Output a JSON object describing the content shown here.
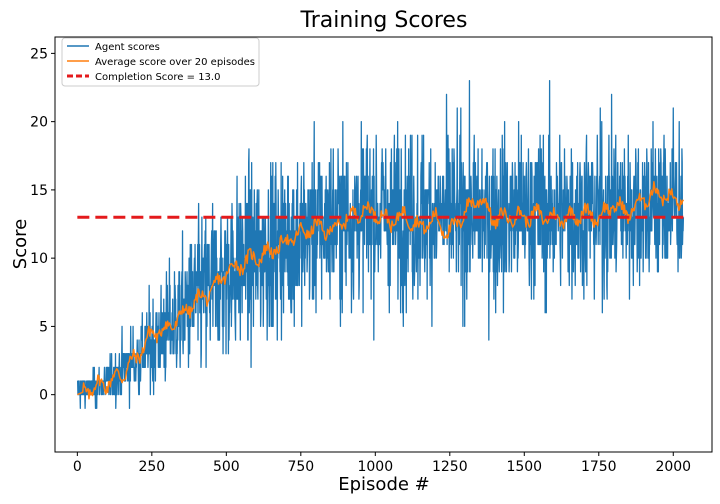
{
  "chart_data": {
    "type": "line",
    "title": "Training Scores",
    "xlabel": "Episode #",
    "ylabel": "Score",
    "xlim": [
      -75,
      2130
    ],
    "ylim": [
      -4.2,
      26.2
    ],
    "xticks": [
      0,
      250,
      500,
      750,
      1000,
      1250,
      1500,
      1750,
      2000
    ],
    "yticks": [
      0,
      5,
      10,
      15,
      20,
      25
    ],
    "grid": false,
    "legend_position": "top-left",
    "colors": {
      "agent": "#1f77b4",
      "average": "#ff7f0e",
      "completion": "#e41a1c"
    },
    "episodes": 2035,
    "series": [
      {
        "name": "Agent scores",
        "style": "line",
        "trend": [
          [
            0,
            0.2
          ],
          [
            100,
            0.9
          ],
          [
            200,
            2.6
          ],
          [
            300,
            4.8
          ],
          [
            400,
            7.0
          ],
          [
            500,
            8.8
          ],
          [
            600,
            10.2
          ],
          [
            700,
            11.3
          ],
          [
            800,
            12.2
          ],
          [
            900,
            12.9
          ],
          [
            1000,
            13.3
          ],
          [
            1100,
            13.2
          ],
          [
            1200,
            13.1
          ],
          [
            1300,
            13.2
          ],
          [
            1400,
            13.0
          ],
          [
            1500,
            13.3
          ],
          [
            1600,
            13.3
          ],
          [
            1700,
            13.4
          ],
          [
            1800,
            13.7
          ],
          [
            1900,
            13.8
          ],
          [
            2000,
            14.0
          ],
          [
            2035,
            14.0
          ]
        ],
        "noise_sd": 4.2,
        "min": -3,
        "max": 25
      },
      {
        "name": "Average score over 20 episodes",
        "style": "line",
        "points": [
          [
            0,
            0.0
          ],
          [
            50,
            0.5
          ],
          [
            100,
            0.9
          ],
          [
            150,
            1.5
          ],
          [
            200,
            2.8
          ],
          [
            250,
            4.5
          ],
          [
            300,
            4.8
          ],
          [
            350,
            5.8
          ],
          [
            400,
            6.9
          ],
          [
            450,
            7.5
          ],
          [
            500,
            9.0
          ],
          [
            550,
            9.6
          ],
          [
            600,
            10.1
          ],
          [
            650,
            10.5
          ],
          [
            700,
            11.2
          ],
          [
            750,
            11.8
          ],
          [
            800,
            12.3
          ],
          [
            850,
            12.0
          ],
          [
            900,
            12.8
          ],
          [
            950,
            13.5
          ],
          [
            1000,
            13.4
          ],
          [
            1050,
            12.6
          ],
          [
            1100,
            13.2
          ],
          [
            1150,
            12.2
          ],
          [
            1200,
            12.9
          ],
          [
            1250,
            11.8
          ],
          [
            1300,
            13.4
          ],
          [
            1350,
            14.5
          ],
          [
            1400,
            12.8
          ],
          [
            1450,
            13.1
          ],
          [
            1500,
            13.0
          ],
          [
            1550,
            13.2
          ],
          [
            1600,
            12.9
          ],
          [
            1650,
            13.0
          ],
          [
            1700,
            13.3
          ],
          [
            1750,
            13.0
          ],
          [
            1800,
            13.9
          ],
          [
            1850,
            13.3
          ],
          [
            1900,
            14.3
          ],
          [
            1950,
            14.9
          ],
          [
            2000,
            14.2
          ],
          [
            2035,
            14.3
          ]
        ]
      },
      {
        "name": "Completion Score = 13.0",
        "style": "dashed",
        "x_range": [
          0,
          2035
        ],
        "value": 13.0
      }
    ]
  }
}
